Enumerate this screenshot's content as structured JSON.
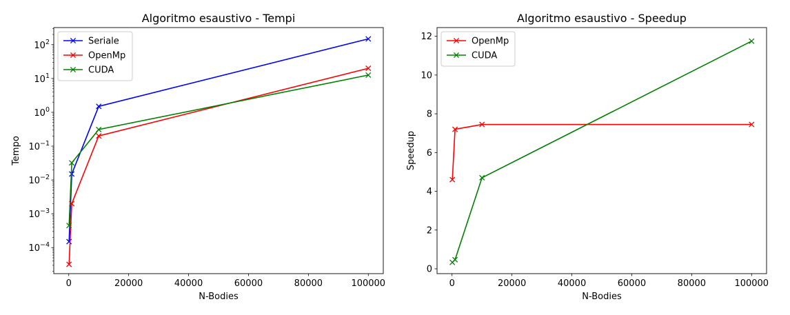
{
  "chart_data": [
    {
      "type": "line",
      "title": "Algoritmo esaustivo - Tempi",
      "xlabel": "N-Bodies",
      "ylabel": "Tempo",
      "yscale": "log",
      "xlim": [
        -5000,
        105000
      ],
      "ylim": [
        1.7e-05,
        320
      ],
      "xticks": [
        0,
        20000,
        40000,
        60000,
        80000,
        100000
      ],
      "xtick_labels": [
        "0",
        "20000",
        "40000",
        "60000",
        "80000",
        "100000"
      ],
      "yticks": [
        0.0001,
        0.001,
        0.01,
        0.1,
        1,
        10,
        100
      ],
      "ytick_labels": [
        {
          "base": "10",
          "exp": "−4"
        },
        {
          "base": "10",
          "exp": "−3"
        },
        {
          "base": "10",
          "exp": "−2"
        },
        {
          "base": "10",
          "exp": "−1"
        },
        {
          "base": "10",
          "exp": "0"
        },
        {
          "base": "10",
          "exp": "1"
        },
        {
          "base": "10",
          "exp": "2"
        }
      ],
      "legend_position": "upper left",
      "grid": false,
      "series": [
        {
          "name": "Seriale",
          "color": "#0000ff",
          "x": [
            100,
            1000,
            10000,
            100000
          ],
          "y": [
            0.00015,
            0.015,
            1.5,
            148
          ]
        },
        {
          "name": "OpenMp",
          "color": "#ff0000",
          "x": [
            100,
            1000,
            10000,
            100000
          ],
          "y": [
            3.2e-05,
            0.002,
            0.2,
            20
          ]
        },
        {
          "name": "CUDA",
          "color": "#008000",
          "x": [
            100,
            1000,
            10000,
            100000
          ],
          "y": [
            0.00045,
            0.032,
            0.31,
            12.6
          ]
        }
      ]
    },
    {
      "type": "line",
      "title": "Algoritmo esaustivo - Speedup",
      "xlabel": "N-Bodies",
      "ylabel": "Speedup",
      "yscale": "linear",
      "xlim": [
        -5000,
        105000
      ],
      "ylim": [
        -0.25,
        12.45
      ],
      "xticks": [
        0,
        20000,
        40000,
        60000,
        80000,
        100000
      ],
      "xtick_labels": [
        "0",
        "20000",
        "40000",
        "60000",
        "80000",
        "100000"
      ],
      "yticks": [
        0,
        2,
        4,
        6,
        8,
        10,
        12
      ],
      "ytick_labels": [
        "0",
        "2",
        "4",
        "6",
        "8",
        "10",
        "12"
      ],
      "legend_position": "upper left",
      "grid": false,
      "series": [
        {
          "name": "OpenMp",
          "color": "#ff0000",
          "x": [
            100,
            1000,
            10000,
            100000
          ],
          "y": [
            4.6,
            7.2,
            7.45,
            7.45
          ]
        },
        {
          "name": "CUDA",
          "color": "#008000",
          "x": [
            100,
            1000,
            10000,
            100000
          ],
          "y": [
            0.33,
            0.47,
            4.7,
            11.75
          ]
        }
      ]
    }
  ]
}
